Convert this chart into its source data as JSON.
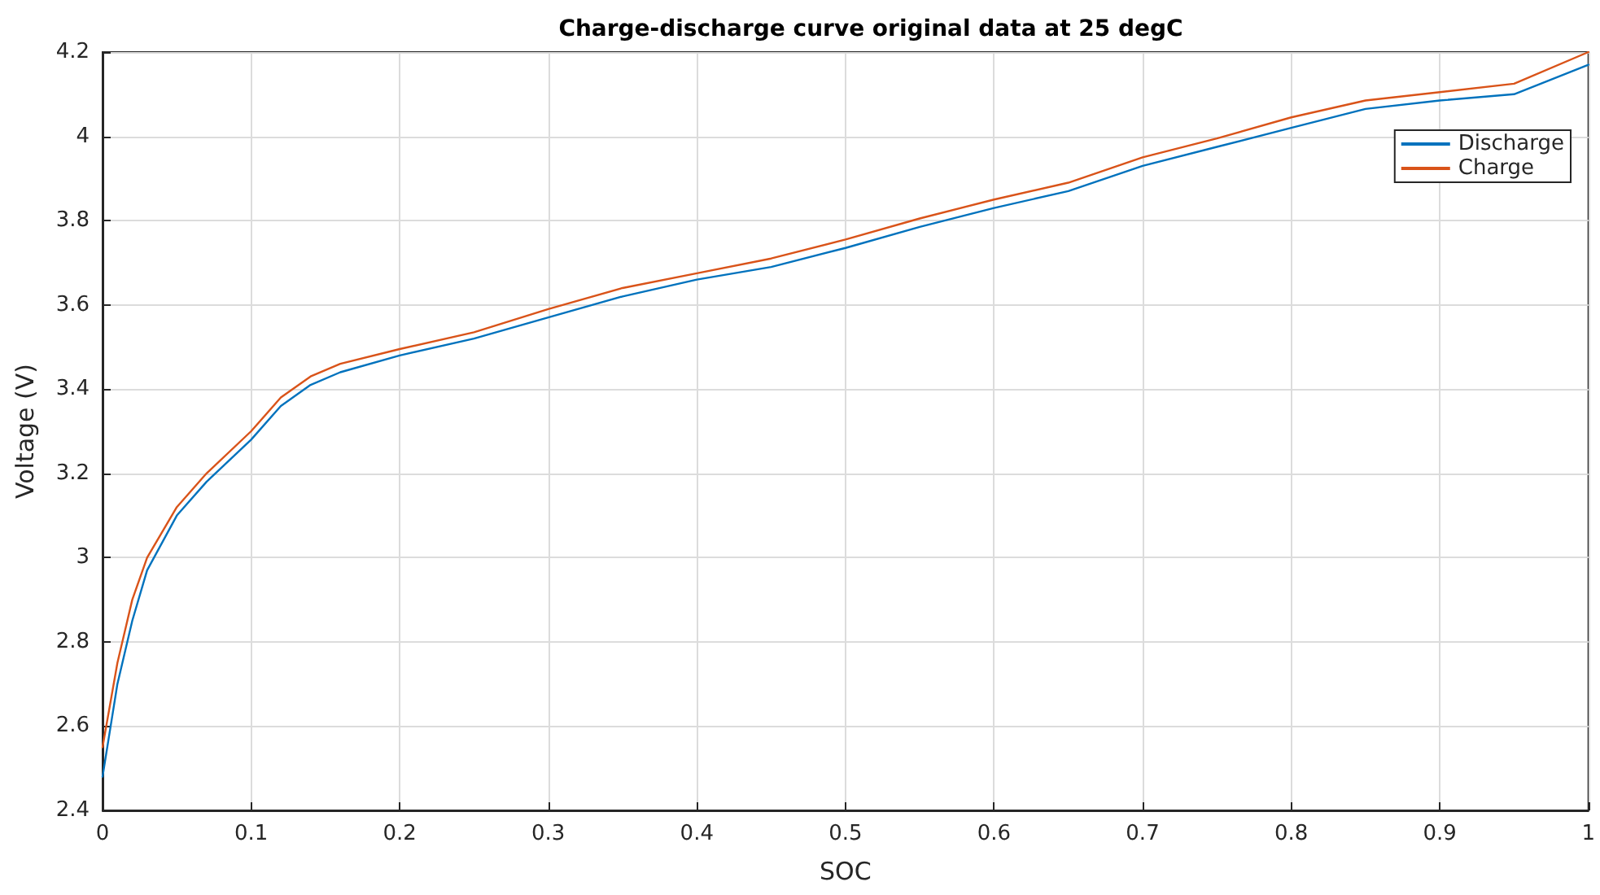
{
  "chart_data": {
    "type": "line",
    "title": "Charge-discharge curve original data at 25 degC",
    "xlabel": "SOC",
    "ylabel": "Voltage (V)",
    "x": [
      0,
      0.01,
      0.02,
      0.03,
      0.05,
      0.07,
      0.1,
      0.12,
      0.14,
      0.16,
      0.2,
      0.25,
      0.3,
      0.35,
      0.4,
      0.45,
      0.5,
      0.55,
      0.6,
      0.65,
      0.7,
      0.75,
      0.8,
      0.85,
      0.9,
      0.95,
      1
    ],
    "series": [
      {
        "name": "Discharge",
        "color": "#0072bd",
        "values": [
          2.48,
          2.7,
          2.85,
          2.97,
          3.1,
          3.18,
          3.28,
          3.36,
          3.41,
          3.44,
          3.48,
          3.52,
          3.57,
          3.62,
          3.66,
          3.69,
          3.735,
          3.785,
          3.83,
          3.87,
          3.93,
          3.975,
          4.02,
          4.065,
          4.085,
          4.1,
          4.17
        ]
      },
      {
        "name": "Charge",
        "color": "#d95319",
        "values": [
          2.55,
          2.75,
          2.9,
          3.0,
          3.12,
          3.2,
          3.3,
          3.38,
          3.43,
          3.46,
          3.495,
          3.535,
          3.59,
          3.64,
          3.675,
          3.71,
          3.755,
          3.805,
          3.85,
          3.89,
          3.95,
          3.995,
          4.045,
          4.085,
          4.105,
          4.125,
          4.2
        ]
      }
    ],
    "xlim": [
      0,
      1
    ],
    "xticks": [
      0,
      0.1,
      0.2,
      0.3,
      0.4,
      0.5,
      0.6,
      0.7,
      0.8,
      0.9,
      1
    ],
    "ylim": [
      2.4,
      4.2
    ],
    "yticks": [
      2.4,
      2.6,
      2.8,
      3,
      3.2,
      3.4,
      3.6,
      3.8,
      4,
      4.2
    ],
    "grid": true,
    "legend": "top right",
    "marker": "none",
    "line_style": "solid"
  }
}
